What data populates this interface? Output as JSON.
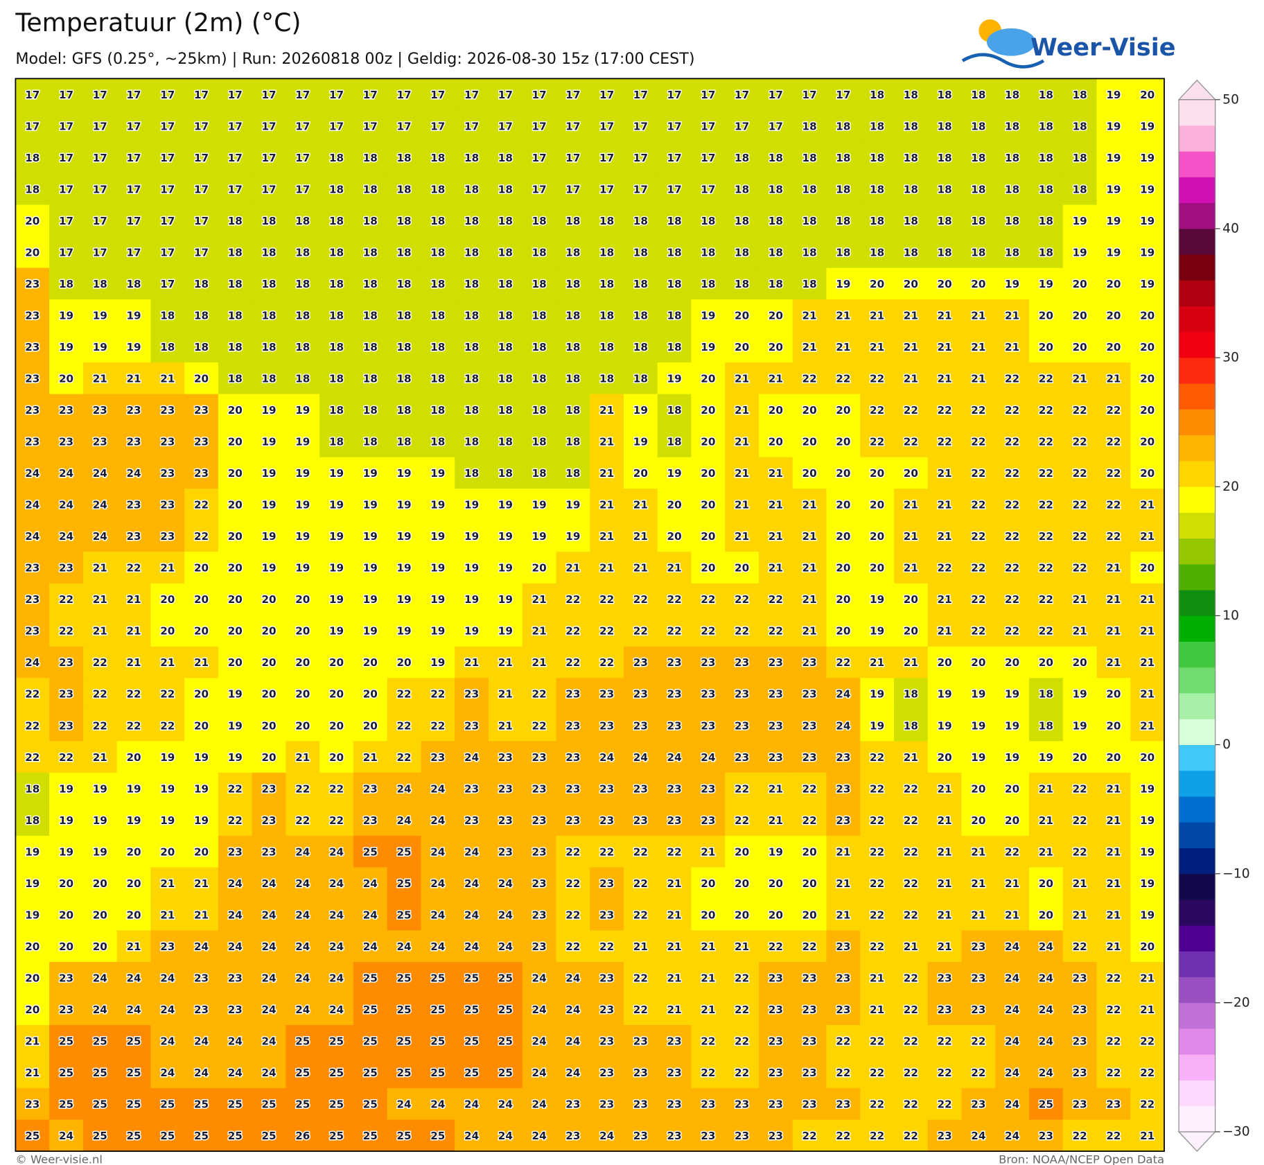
{
  "title": "Temperatuur (2m) (°C)",
  "subtitle": "Model: GFS (0.25°, ~25km) | Run: 20260818 00z | Geldig: 2026-08-30 15z (17:00 CEST)",
  "logo": "Weer-Visie",
  "grid": {
    "values": [
      [
        17,
        17,
        17,
        17,
        17,
        17,
        17,
        17,
        17,
        17,
        17,
        17,
        17,
        17,
        17,
        17,
        17,
        17,
        17,
        17,
        17,
        17,
        17,
        17,
        17,
        18,
        18,
        18,
        18,
        18,
        18,
        18,
        19,
        20
      ],
      [
        17,
        17,
        17,
        17,
        17,
        17,
        17,
        17,
        17,
        17,
        17,
        17,
        17,
        17,
        17,
        17,
        17,
        17,
        17,
        17,
        17,
        17,
        17,
        18,
        18,
        18,
        18,
        18,
        18,
        18,
        18,
        18,
        19,
        19
      ],
      [
        18,
        17,
        17,
        17,
        17,
        17,
        17,
        17,
        17,
        18,
        18,
        18,
        18,
        18,
        18,
        17,
        17,
        17,
        17,
        17,
        17,
        18,
        18,
        18,
        18,
        18,
        18,
        18,
        18,
        18,
        18,
        18,
        19,
        19
      ],
      [
        18,
        17,
        17,
        17,
        17,
        17,
        17,
        17,
        17,
        18,
        18,
        18,
        18,
        18,
        18,
        17,
        17,
        17,
        17,
        17,
        17,
        18,
        18,
        18,
        18,
        18,
        18,
        18,
        18,
        18,
        18,
        18,
        19,
        19
      ],
      [
        20,
        17,
        17,
        17,
        17,
        17,
        18,
        18,
        18,
        18,
        18,
        18,
        18,
        18,
        18,
        18,
        18,
        18,
        18,
        18,
        18,
        18,
        18,
        18,
        18,
        18,
        18,
        18,
        18,
        18,
        18,
        19,
        19,
        19
      ],
      [
        20,
        17,
        17,
        17,
        17,
        17,
        18,
        18,
        18,
        18,
        18,
        18,
        18,
        18,
        18,
        18,
        18,
        18,
        18,
        18,
        18,
        18,
        18,
        18,
        18,
        18,
        18,
        18,
        18,
        18,
        18,
        19,
        19,
        19
      ],
      [
        23,
        18,
        18,
        18,
        17,
        18,
        18,
        18,
        18,
        18,
        18,
        18,
        18,
        18,
        18,
        18,
        18,
        18,
        18,
        18,
        18,
        18,
        18,
        18,
        19,
        20,
        20,
        20,
        20,
        19,
        19,
        20,
        20,
        19
      ],
      [
        23,
        19,
        19,
        19,
        18,
        18,
        18,
        18,
        18,
        18,
        18,
        18,
        18,
        18,
        18,
        18,
        18,
        18,
        18,
        18,
        19,
        20,
        20,
        21,
        21,
        21,
        21,
        21,
        21,
        21,
        20,
        20,
        20,
        20
      ],
      [
        23,
        19,
        19,
        19,
        18,
        18,
        18,
        18,
        18,
        18,
        18,
        18,
        18,
        18,
        18,
        18,
        18,
        18,
        18,
        18,
        19,
        20,
        20,
        21,
        21,
        21,
        21,
        21,
        21,
        21,
        20,
        20,
        20,
        20
      ],
      [
        23,
        20,
        21,
        21,
        21,
        20,
        18,
        18,
        18,
        18,
        18,
        18,
        18,
        18,
        18,
        18,
        18,
        18,
        18,
        19,
        20,
        21,
        21,
        22,
        22,
        22,
        21,
        21,
        21,
        22,
        22,
        21,
        21,
        20
      ],
      [
        23,
        23,
        23,
        23,
        23,
        23,
        20,
        19,
        19,
        18,
        18,
        18,
        18,
        18,
        18,
        18,
        18,
        21,
        19,
        18,
        20,
        21,
        20,
        20,
        20,
        22,
        22,
        22,
        22,
        22,
        22,
        22,
        22,
        20
      ],
      [
        23,
        23,
        23,
        23,
        23,
        23,
        20,
        19,
        19,
        18,
        18,
        18,
        18,
        18,
        18,
        18,
        18,
        21,
        19,
        18,
        20,
        21,
        20,
        20,
        20,
        22,
        22,
        22,
        22,
        22,
        22,
        22,
        22,
        20
      ],
      [
        24,
        24,
        24,
        24,
        23,
        23,
        20,
        19,
        19,
        19,
        19,
        19,
        19,
        18,
        18,
        18,
        18,
        21,
        20,
        19,
        20,
        21,
        21,
        20,
        20,
        20,
        20,
        21,
        22,
        22,
        22,
        22,
        22,
        20
      ],
      [
        24,
        24,
        24,
        23,
        23,
        22,
        20,
        19,
        19,
        19,
        19,
        19,
        19,
        19,
        19,
        19,
        19,
        21,
        21,
        20,
        20,
        21,
        21,
        21,
        20,
        20,
        21,
        21,
        22,
        22,
        22,
        22,
        22,
        21
      ],
      [
        24,
        24,
        24,
        23,
        23,
        22,
        20,
        19,
        19,
        19,
        19,
        19,
        19,
        19,
        19,
        19,
        19,
        21,
        21,
        20,
        20,
        21,
        21,
        21,
        20,
        20,
        21,
        21,
        22,
        22,
        22,
        22,
        22,
        21
      ],
      [
        23,
        23,
        21,
        22,
        21,
        20,
        20,
        19,
        19,
        19,
        19,
        19,
        19,
        19,
        19,
        20,
        21,
        21,
        21,
        21,
        20,
        20,
        21,
        21,
        20,
        20,
        21,
        22,
        22,
        22,
        22,
        22,
        21,
        20
      ],
      [
        23,
        22,
        21,
        21,
        20,
        20,
        20,
        20,
        20,
        19,
        19,
        19,
        19,
        19,
        19,
        21,
        22,
        22,
        22,
        22,
        22,
        22,
        22,
        21,
        20,
        19,
        20,
        21,
        22,
        22,
        22,
        21,
        21,
        21
      ],
      [
        23,
        22,
        21,
        21,
        20,
        20,
        20,
        20,
        20,
        19,
        19,
        19,
        19,
        19,
        19,
        21,
        22,
        22,
        22,
        22,
        22,
        22,
        22,
        21,
        20,
        19,
        20,
        21,
        22,
        22,
        22,
        21,
        21,
        21
      ],
      [
        24,
        23,
        22,
        21,
        21,
        21,
        20,
        20,
        20,
        20,
        20,
        20,
        19,
        21,
        21,
        21,
        22,
        22,
        23,
        23,
        23,
        23,
        23,
        23,
        22,
        21,
        21,
        20,
        20,
        20,
        20,
        20,
        21,
        21
      ],
      [
        22,
        23,
        22,
        22,
        22,
        20,
        19,
        20,
        20,
        20,
        20,
        22,
        22,
        23,
        21,
        22,
        23,
        23,
        23,
        23,
        23,
        23,
        23,
        23,
        24,
        19,
        18,
        19,
        19,
        19,
        18,
        19,
        20,
        21
      ],
      [
        22,
        23,
        22,
        22,
        22,
        20,
        19,
        20,
        20,
        20,
        20,
        22,
        22,
        23,
        21,
        22,
        23,
        23,
        23,
        23,
        23,
        23,
        23,
        23,
        24,
        19,
        18,
        19,
        19,
        19,
        18,
        19,
        20,
        21
      ],
      [
        22,
        22,
        21,
        20,
        19,
        19,
        19,
        20,
        21,
        20,
        21,
        22,
        23,
        24,
        23,
        23,
        23,
        24,
        24,
        24,
        24,
        23,
        23,
        23,
        23,
        22,
        21,
        20,
        19,
        19,
        19,
        20,
        20,
        20
      ],
      [
        18,
        19,
        19,
        19,
        19,
        19,
        22,
        23,
        22,
        22,
        23,
        24,
        24,
        23,
        23,
        23,
        23,
        23,
        23,
        23,
        23,
        22,
        21,
        22,
        23,
        22,
        22,
        21,
        20,
        20,
        21,
        22,
        21,
        19
      ],
      [
        18,
        19,
        19,
        19,
        19,
        19,
        22,
        23,
        22,
        22,
        23,
        24,
        24,
        23,
        23,
        23,
        23,
        23,
        23,
        23,
        23,
        22,
        21,
        22,
        23,
        22,
        22,
        21,
        20,
        20,
        21,
        22,
        21,
        19
      ],
      [
        19,
        19,
        19,
        20,
        20,
        20,
        23,
        23,
        24,
        24,
        25,
        25,
        24,
        24,
        23,
        23,
        22,
        22,
        22,
        22,
        21,
        20,
        19,
        20,
        21,
        22,
        22,
        21,
        21,
        22,
        21,
        22,
        21,
        19
      ],
      [
        19,
        20,
        20,
        20,
        21,
        21,
        24,
        24,
        24,
        24,
        24,
        25,
        24,
        24,
        24,
        23,
        22,
        23,
        22,
        21,
        20,
        20,
        20,
        20,
        21,
        22,
        22,
        21,
        21,
        21,
        20,
        21,
        21,
        19
      ],
      [
        19,
        20,
        20,
        20,
        21,
        21,
        24,
        24,
        24,
        24,
        24,
        25,
        24,
        24,
        24,
        23,
        22,
        23,
        22,
        21,
        20,
        20,
        20,
        20,
        21,
        22,
        22,
        21,
        21,
        21,
        20,
        21,
        21,
        19
      ],
      [
        20,
        20,
        20,
        21,
        23,
        24,
        24,
        24,
        24,
        24,
        24,
        24,
        24,
        24,
        24,
        23,
        22,
        22,
        21,
        21,
        21,
        21,
        22,
        22,
        23,
        22,
        21,
        21,
        23,
        24,
        24,
        22,
        21,
        20
      ],
      [
        20,
        23,
        24,
        24,
        24,
        23,
        23,
        24,
        24,
        24,
        25,
        25,
        25,
        25,
        25,
        24,
        24,
        23,
        22,
        21,
        21,
        22,
        23,
        23,
        23,
        21,
        22,
        23,
        23,
        24,
        24,
        23,
        22,
        21
      ],
      [
        20,
        23,
        24,
        24,
        24,
        23,
        23,
        24,
        24,
        24,
        25,
        25,
        25,
        25,
        25,
        24,
        24,
        23,
        22,
        21,
        21,
        22,
        23,
        23,
        23,
        21,
        22,
        23,
        23,
        24,
        24,
        23,
        22,
        21
      ],
      [
        21,
        25,
        25,
        25,
        24,
        24,
        24,
        24,
        25,
        25,
        25,
        25,
        25,
        25,
        25,
        24,
        24,
        23,
        23,
        23,
        22,
        22,
        23,
        23,
        22,
        22,
        22,
        22,
        22,
        24,
        24,
        23,
        22,
        22
      ],
      [
        21,
        25,
        25,
        25,
        24,
        24,
        24,
        24,
        25,
        25,
        25,
        25,
        25,
        25,
        25,
        24,
        24,
        23,
        23,
        23,
        22,
        22,
        23,
        23,
        22,
        22,
        22,
        22,
        22,
        24,
        24,
        23,
        22,
        22
      ],
      [
        23,
        25,
        25,
        25,
        25,
        25,
        25,
        25,
        25,
        25,
        25,
        24,
        24,
        24,
        24,
        24,
        23,
        23,
        23,
        23,
        23,
        23,
        23,
        23,
        23,
        22,
        22,
        22,
        23,
        24,
        25,
        23,
        23,
        22
      ],
      [
        25,
        24,
        25,
        25,
        25,
        25,
        25,
        25,
        26,
        25,
        25,
        25,
        25,
        24,
        24,
        24,
        23,
        24,
        23,
        23,
        23,
        23,
        23,
        22,
        22,
        22,
        22,
        23,
        24,
        24,
        23,
        22,
        22,
        21
      ]
    ]
  },
  "colorbar": {
    "lim": [
      -30,
      50
    ],
    "ticks": [
      {
        "value": -30,
        "label": "−30"
      },
      {
        "value": -20,
        "label": "−20"
      },
      {
        "value": -10,
        "label": "−10"
      },
      0,
      10,
      20,
      30,
      40,
      50
    ],
    "colors": [
      "#fff0ff",
      "#fcd8fc",
      "#f8b0f8",
      "#e088e8",
      "#c070d8",
      "#9850c0",
      "#7030b0",
      "#500090",
      "#2a0860",
      "#100848",
      "#002080",
      "#0048a8",
      "#0070d0",
      "#10a0e8",
      "#40c8f8",
      "#d8ffd8",
      "#a8f0a8",
      "#70dc70",
      "#40c840",
      "#00b000",
      "#109010",
      "#50b000",
      "#96c800",
      "#d0de00",
      "#ffff00",
      "#ffd500",
      "#ffb400",
      "#ff8c00",
      "#ff5a00",
      "#ff2a10",
      "#f00010",
      "#d80010",
      "#b00010",
      "#7a0010",
      "#5a0838",
      "#a0107e",
      "#d010b0",
      "#f652c8",
      "#fbb0dc",
      "#fce0f0"
    ]
  },
  "footer": {
    "left": "© Weer-visie.nl",
    "right": "Bron: NOAA/NCEP Open Data"
  }
}
